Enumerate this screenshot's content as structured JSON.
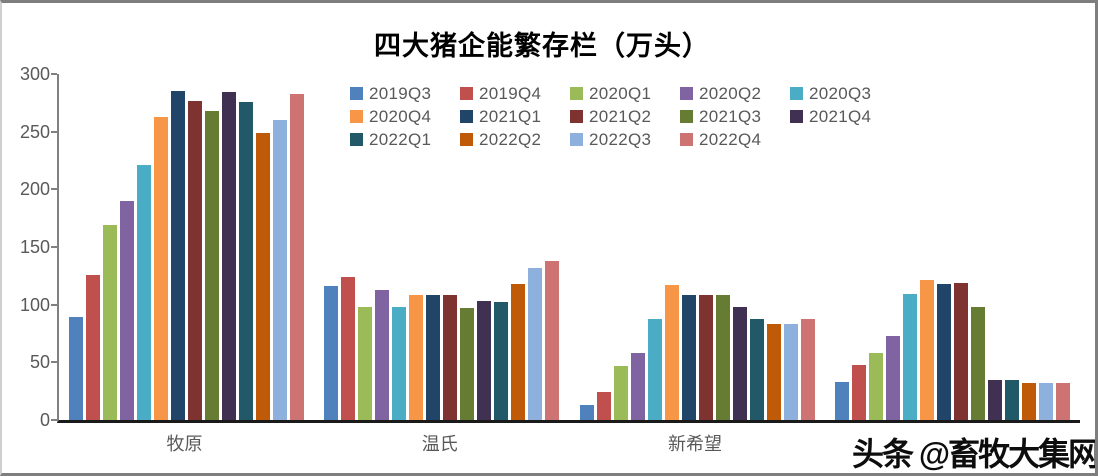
{
  "title": "四大猪企能繁存栏（万头）",
  "watermark": "头条 @畜牧大集网",
  "chart_data": {
    "type": "bar",
    "title": "四大猪企能繁存栏（万头）",
    "xlabel": "",
    "ylabel": "",
    "categories": [
      "牧原",
      "温氏",
      "新希望",
      ""
    ],
    "ylim": [
      0,
      300
    ],
    "yticks": [
      0,
      50,
      100,
      150,
      200,
      250,
      300
    ],
    "grid": false,
    "legend_position": "inside-top-center",
    "legend_columns": 5,
    "axis_text_color": "#595959",
    "series": [
      {
        "name": "2019Q3",
        "color": "#4F81BD",
        "values": [
          89,
          116,
          13,
          33
        ]
      },
      {
        "name": "2019Q4",
        "color": "#C0504D",
        "values": [
          126,
          124,
          24,
          48
        ]
      },
      {
        "name": "2020Q1",
        "color": "#9BBB59",
        "values": [
          169,
          98,
          47,
          58
        ]
      },
      {
        "name": "2020Q2",
        "color": "#8064A2",
        "values": [
          190,
          113,
          58,
          73
        ]
      },
      {
        "name": "2020Q3",
        "color": "#4BACC6",
        "values": [
          221,
          98,
          88,
          109
        ]
      },
      {
        "name": "2020Q4",
        "color": "#F79646",
        "values": [
          263,
          108,
          117,
          121
        ]
      },
      {
        "name": "2021Q1",
        "color": "#204569",
        "values": [
          285,
          108,
          108,
          118
        ]
      },
      {
        "name": "2021Q2",
        "color": "#7E3331",
        "values": [
          277,
          108,
          108,
          119
        ]
      },
      {
        "name": "2021Q3",
        "color": "#667C33",
        "values": [
          268,
          97,
          108,
          98
        ]
      },
      {
        "name": "2021Q4",
        "color": "#403152",
        "values": [
          284,
          103,
          98,
          35
        ]
      },
      {
        "name": "2022Q1",
        "color": "#215968",
        "values": [
          276,
          102,
          88,
          35
        ]
      },
      {
        "name": "2022Q2",
        "color": "#BE5A08",
        "values": [
          249,
          118,
          83,
          32
        ]
      },
      {
        "name": "2022Q3",
        "color": "#8EB0DC",
        "values": [
          260,
          132,
          83,
          32
        ]
      },
      {
        "name": "2022Q4",
        "color": "#CD7371",
        "values": [
          283,
          138,
          88,
          32
        ]
      }
    ]
  }
}
